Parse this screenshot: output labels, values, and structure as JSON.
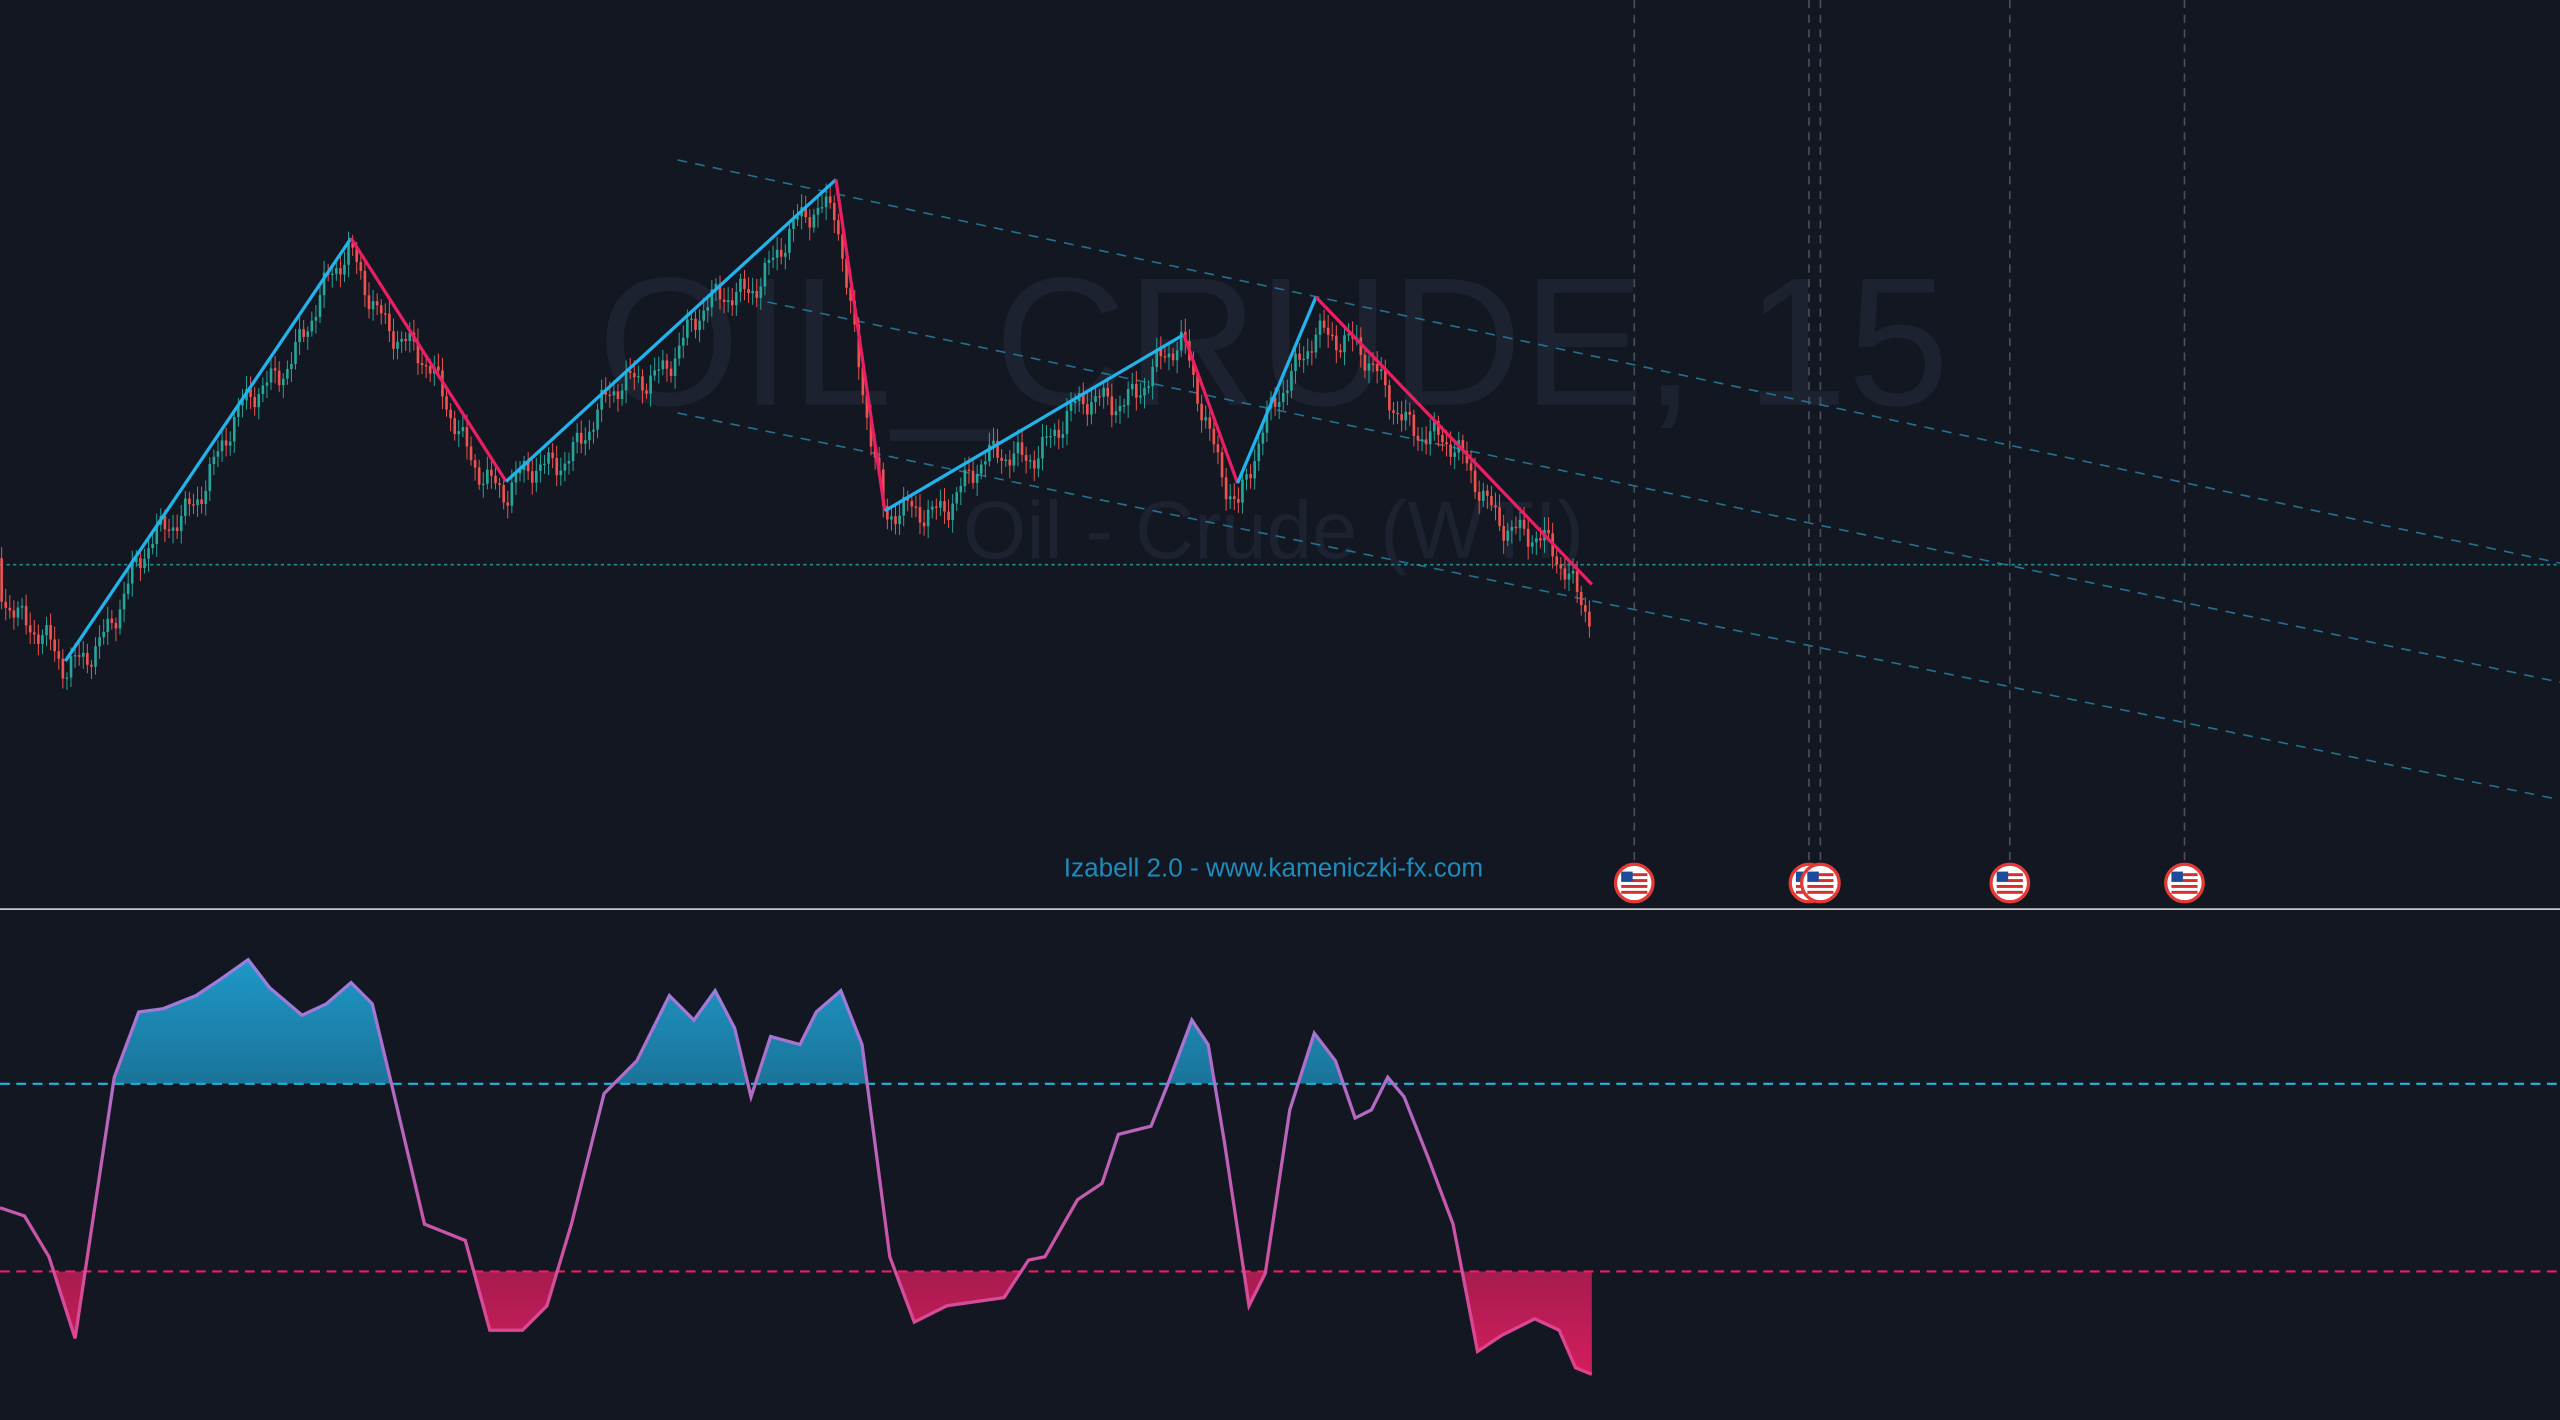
{
  "watermark": {
    "symbol": "OIL_CRUDE, 15",
    "description": "Oil - Crude (WTI)"
  },
  "indicator": {
    "label": "Izabell 2.0 - www.kameniczki-fx.com"
  }
}
